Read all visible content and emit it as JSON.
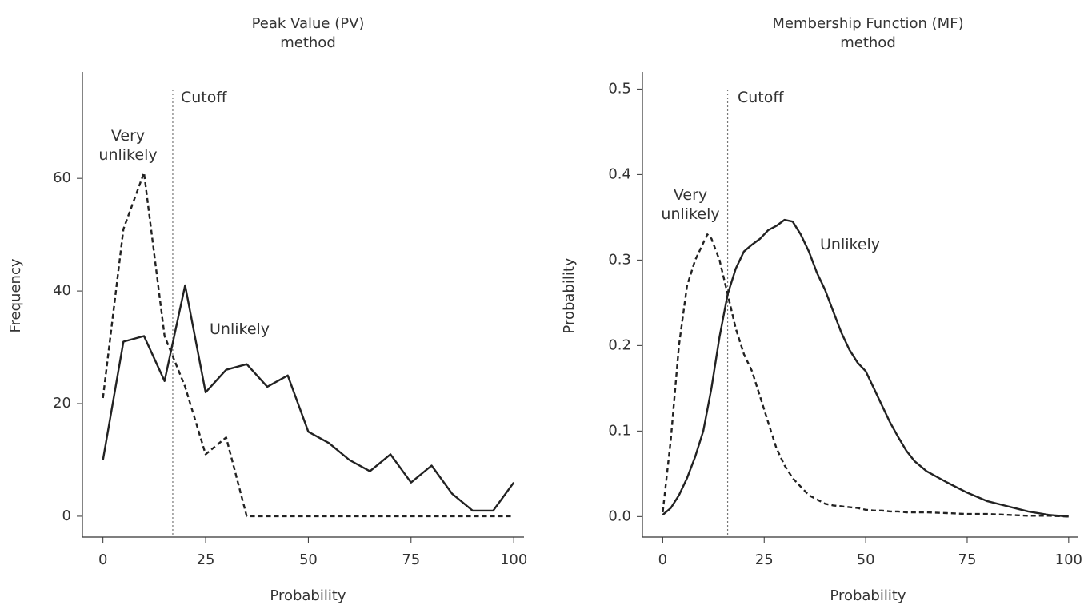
{
  "chart_data": [
    {
      "type": "line",
      "title": [
        "Peak Value (PV)",
        "method"
      ],
      "xlabel": "Probability",
      "ylabel": "Frequency",
      "x": [
        0,
        5,
        10,
        15,
        20,
        25,
        30,
        35,
        40,
        45,
        50,
        55,
        60,
        65,
        70,
        75,
        80,
        85,
        90,
        95,
        100
      ],
      "series": [
        {
          "name": "Unlikely",
          "color": "#222222",
          "dashed": false,
          "values": [
            10,
            31,
            32,
            24,
            41,
            22,
            26,
            27,
            23,
            25,
            15,
            13,
            10,
            8,
            11,
            6,
            9,
            4,
            1,
            1,
            6
          ]
        },
        {
          "name": "Very unlikely",
          "color": "#222222",
          "dashed": true,
          "values": [
            21,
            51,
            61,
            32,
            23,
            11,
            14,
            0,
            0,
            0,
            0,
            0,
            0,
            0,
            0,
            0,
            0,
            0,
            0,
            0,
            0
          ]
        }
      ],
      "cutoff": {
        "value": 17,
        "label": "Cutoff"
      },
      "xlim": [
        -5,
        102.5
      ],
      "xticks": [
        0,
        25,
        50,
        75,
        100
      ],
      "ylim": [
        -3.7,
        78.9
      ],
      "yticks": [
        0,
        20,
        40,
        60
      ]
    },
    {
      "type": "line",
      "title": [
        "Membership Function (MF)",
        "method"
      ],
      "xlabel": "Probability",
      "ylabel": "Probability",
      "x": [
        0,
        2,
        4,
        6,
        8,
        10,
        11,
        12,
        14,
        16,
        18,
        20,
        22,
        24,
        26,
        28,
        30,
        32,
        34,
        36,
        38,
        40,
        42,
        44,
        46,
        48,
        50,
        52,
        54,
        56,
        58,
        60,
        62,
        65,
        70,
        75,
        80,
        85,
        90,
        95,
        100
      ],
      "series": [
        {
          "name": "Unlikely",
          "color": "#222222",
          "dashed": false,
          "values": [
            0.002,
            0.01,
            0.025,
            0.045,
            0.07,
            0.1,
            0.125,
            0.15,
            0.21,
            0.26,
            0.29,
            0.31,
            0.318,
            0.325,
            0.335,
            0.34,
            0.347,
            0.345,
            0.33,
            0.31,
            0.285,
            0.265,
            0.24,
            0.215,
            0.195,
            0.18,
            0.17,
            0.15,
            0.13,
            0.11,
            0.093,
            0.077,
            0.065,
            0.053,
            0.04,
            0.028,
            0.018,
            0.012,
            0.006,
            0.002,
            0
          ]
        },
        {
          "name": "Very unlikely",
          "color": "#222222",
          "dashed": true,
          "values": [
            0.005,
            0.09,
            0.2,
            0.27,
            0.3,
            0.32,
            0.33,
            0.325,
            0.3,
            0.26,
            0.22,
            0.19,
            0.17,
            0.14,
            0.11,
            0.08,
            0.06,
            0.045,
            0.035,
            0.025,
            0.02,
            0.015,
            0.013,
            0.012,
            0.011,
            0.01,
            0.008,
            0.007,
            0.007,
            0.006,
            0.006,
            0.005,
            0.005,
            0.005,
            0.004,
            0.003,
            0.003,
            0.002,
            0.001,
            0.001,
            0
          ]
        }
      ],
      "cutoff": {
        "value": 16,
        "label": "Cutoff"
      },
      "xlim": [
        -5,
        102.2
      ],
      "xticks": [
        0,
        25,
        50,
        75,
        100
      ],
      "ylim": [
        -0.024,
        0.52
      ],
      "yticks": [
        {
          "value": 0,
          "label": "0.0"
        },
        0.1,
        0.2,
        0.3,
        0.4,
        0.5
      ]
    }
  ]
}
